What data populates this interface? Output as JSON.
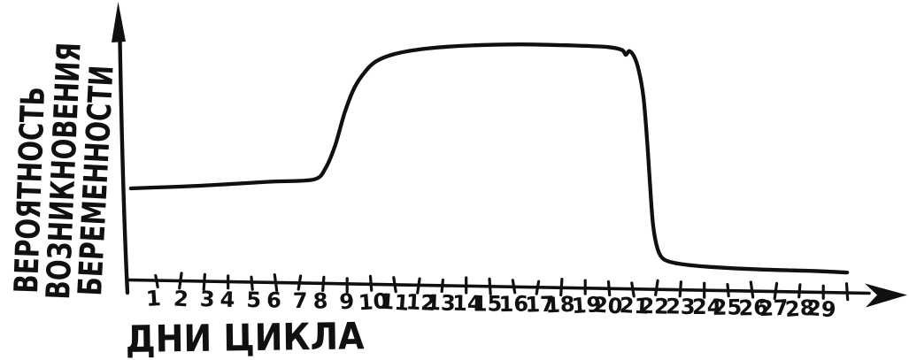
{
  "page": {
    "background_color": "#ffffff",
    "ink_color": "#101010"
  },
  "chart_data": {
    "type": "line",
    "style": "hand-drawn",
    "title": "",
    "xlabel": "ДНИ ЦИКЛА",
    "ylabel": "ВЕРОЯТНОСТЬ ВОЗНИКНОВЕНИЯ БЕРЕМЕННОСТИ",
    "ylabel_lines": [
      "ВЕРОЯТНОСТЬ",
      "ВОЗНИКНОВЕНИЯ",
      "БЕРЕМЕННОСТИ"
    ],
    "grid": false,
    "legend": "none",
    "x_axis": {
      "range_days": [
        1,
        29
      ],
      "has_arrow": true,
      "extra_unlabeled_tick": true
    },
    "y_axis": {
      "range_relative": [
        0,
        1
      ],
      "tick_labels": "none",
      "has_arrow": true
    },
    "x_tick_labels": [
      "1",
      "2",
      "3",
      "4",
      "5",
      "6",
      "7",
      "8",
      "9",
      "10",
      "11",
      "12",
      "13",
      "14",
      "15",
      "16",
      "17",
      "18",
      "19",
      "20",
      "21",
      "22",
      "23",
      "24",
      "25",
      "26",
      "27",
      "28",
      "29",
      ""
    ],
    "values_by_day": [
      0.35,
      0.35,
      0.355,
      0.36,
      0.365,
      0.372,
      0.378,
      0.41,
      0.65,
      0.81,
      0.847,
      0.866,
      0.879,
      0.882,
      0.887,
      0.889,
      0.889,
      0.888,
      0.886,
      0.884,
      0.853,
      0.145,
      0.1,
      0.088,
      0.084,
      0.08,
      0.078,
      0.077,
      0.075
    ],
    "series": [
      {
        "name": "вероятность возникновения беременности",
        "points_day_probability": [
          [
            -0.08,
            0.34
          ],
          [
            1,
            0.345
          ],
          [
            2.9,
            0.354
          ],
          [
            5.7,
            0.372
          ],
          [
            7.6,
            0.383
          ],
          [
            8.1,
            0.426
          ],
          [
            8.5,
            0.51
          ],
          [
            8.9,
            0.63
          ],
          [
            9.3,
            0.72
          ],
          [
            9.75,
            0.78
          ],
          [
            10.2,
            0.818
          ],
          [
            11,
            0.847
          ],
          [
            12.3,
            0.868
          ],
          [
            14.1,
            0.882
          ],
          [
            16.3,
            0.889
          ],
          [
            18.6,
            0.888
          ],
          [
            20,
            0.884
          ],
          [
            20.55,
            0.874
          ],
          [
            20.7,
            0.857
          ],
          [
            20.85,
            0.871
          ],
          [
            21.05,
            0.852
          ],
          [
            21.25,
            0.8
          ],
          [
            21.45,
            0.7
          ],
          [
            21.6,
            0.545
          ],
          [
            21.72,
            0.385
          ],
          [
            21.85,
            0.235
          ],
          [
            22.05,
            0.146
          ],
          [
            22.3,
            0.111
          ],
          [
            22.9,
            0.096
          ],
          [
            24.2,
            0.086
          ],
          [
            26.4,
            0.079
          ],
          [
            28.6,
            0.077
          ],
          [
            30,
            0.073
          ]
        ]
      }
    ]
  }
}
